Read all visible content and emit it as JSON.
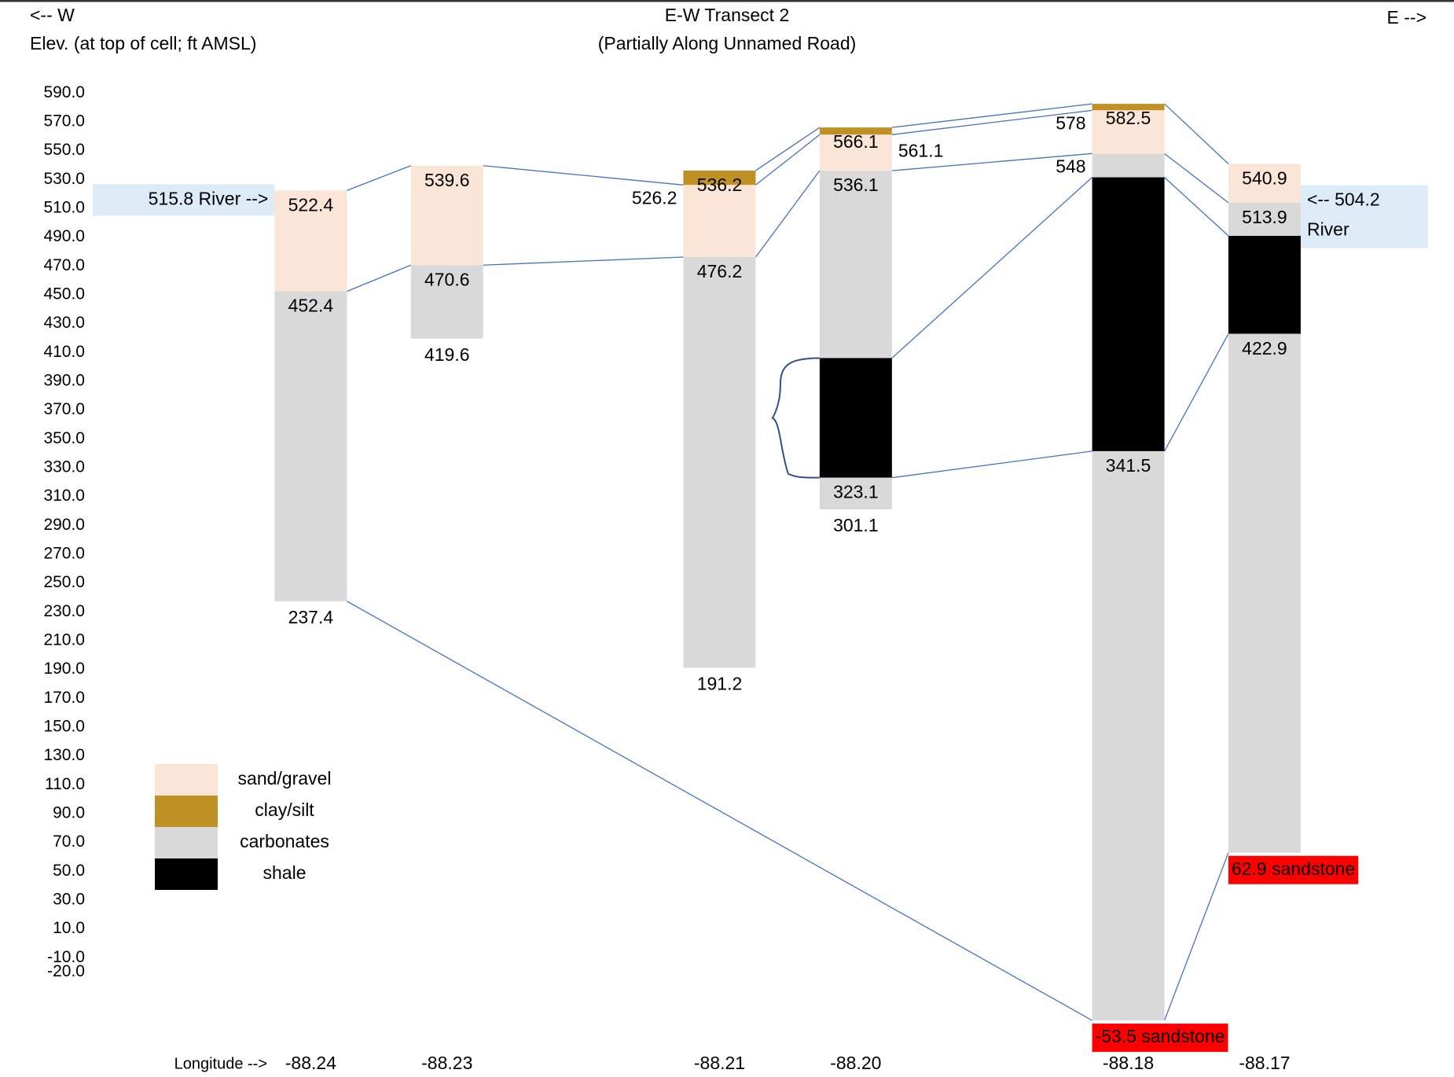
{
  "chart_data": {
    "type": "cross-section",
    "title": "E-W Transect 2",
    "subtitle": "(Partially Along Unnamed Road)",
    "west_label": "<-- W",
    "east_label": "E -->",
    "y_label": "Elev. (at top of cell; ft AMSL)",
    "x_label": "Longitude -->",
    "ylim": [
      -60,
      600
    ],
    "yticks": [
      {
        "value": 590,
        "label": "590.0"
      },
      {
        "value": 570,
        "label": "570.0"
      },
      {
        "value": 550,
        "label": "550.0"
      },
      {
        "value": 530,
        "label": "530.0"
      },
      {
        "value": 510,
        "label": "510.0"
      },
      {
        "value": 490,
        "label": "490.0"
      },
      {
        "value": 470,
        "label": "470.0"
      },
      {
        "value": 450,
        "label": "450.0"
      },
      {
        "value": 430,
        "label": "430.0"
      },
      {
        "value": 410,
        "label": "410.0"
      },
      {
        "value": 390,
        "label": "390.0"
      },
      {
        "value": 370,
        "label": "370.0"
      },
      {
        "value": 350,
        "label": "350.0"
      },
      {
        "value": 330,
        "label": "330.0"
      },
      {
        "value": 310,
        "label": "310.0"
      },
      {
        "value": 290,
        "label": "290.0"
      },
      {
        "value": 270,
        "label": "270.0"
      },
      {
        "value": 250,
        "label": "250.0"
      },
      {
        "value": 230,
        "label": "230.0"
      },
      {
        "value": 210,
        "label": "210.0"
      },
      {
        "value": 190,
        "label": "190.0"
      },
      {
        "value": 170,
        "label": "170.0"
      },
      {
        "value": 150,
        "label": "150.0"
      },
      {
        "value": 130,
        "label": "130.0"
      },
      {
        "value": 110,
        "label": "110.0"
      },
      {
        "value": 90,
        "label": "90.0"
      },
      {
        "value": 70,
        "label": "70.0"
      },
      {
        "value": 50,
        "label": "50.0"
      },
      {
        "value": 30,
        "label": "30.0"
      },
      {
        "value": 10,
        "label": "10.0"
      },
      {
        "value": -10,
        "label": "-10.0"
      },
      {
        "value": -20,
        "label": "-20.0"
      }
    ],
    "xlim": [
      -88.256,
      -88.158
    ],
    "xticks": [
      {
        "value": -88.24,
        "label": "-88.24"
      },
      {
        "value": -88.23,
        "label": "-88.23"
      },
      {
        "value": -88.21,
        "label": "-88.21"
      },
      {
        "value": -88.2,
        "label": "-88.20"
      },
      {
        "value": -88.18,
        "label": "-88.18"
      },
      {
        "value": -88.17,
        "label": "-88.17"
      }
    ],
    "materials": [
      {
        "name": "sand/gravel",
        "color": "#fbe5d6"
      },
      {
        "name": "clay/silt",
        "color": "#bf9024"
      },
      {
        "name": "carbonates",
        "color": "#d9d9d9"
      },
      {
        "name": "shale",
        "color": "#000000"
      }
    ],
    "legend": "lower left",
    "columns": [
      {
        "x": -88.24,
        "layers": [
          "sand/gravel",
          "carbonates"
        ],
        "boundaries": [
          522.4,
          452.4,
          237.4
        ]
      },
      {
        "x": -88.23,
        "layers": [
          "sand/gravel",
          "carbonates"
        ],
        "boundaries": [
          539.6,
          470.6,
          419.6
        ]
      },
      {
        "x": -88.21,
        "layers": [
          "clay/silt",
          "sand/gravel",
          "carbonates"
        ],
        "boundaries": [
          536.2,
          526.2,
          476.2,
          191.2
        ]
      },
      {
        "x": -88.2,
        "layers": [
          "clay/silt",
          "sand/gravel",
          "carbonates",
          "shale",
          "carbonates"
        ],
        "boundaries": [
          566.1,
          561.1,
          536.1,
          406.1,
          323.1,
          301.1
        ]
      },
      {
        "x": -88.18,
        "layers": [
          "clay/silt",
          "sand/gravel",
          "carbonates",
          "shale",
          "carbonates"
        ],
        "boundaries": [
          582.5,
          578,
          548,
          531.5,
          341.5,
          -53.5
        ],
        "value_labels": [
          "582.5",
          "578",
          "548",
          "531.5",
          "341.5",
          "-53.5 sandstone"
        ],
        "base_color": "#ff0000"
      },
      {
        "x": -88.17,
        "layers": [
          "sand/gravel",
          "carbonates",
          "shale",
          "carbonates"
        ],
        "boundaries": [
          540.9,
          513.9,
          490.9,
          422.9,
          62.9
        ],
        "value_labels": [
          "540.9",
          "513.9",
          "490.9",
          "422.9",
          "62.9 sandstone"
        ],
        "base_color": "#ff0000"
      }
    ],
    "link_color": "#4472c4",
    "rivers": [
      {
        "labels": [
          "515.8 River -->"
        ],
        "elevation": 515.8
      },
      {
        "labels": [
          "<-- 504.2",
          "River"
        ],
        "elevation": 504.2
      }
    ],
    "river_color": "#ddebf7"
  }
}
